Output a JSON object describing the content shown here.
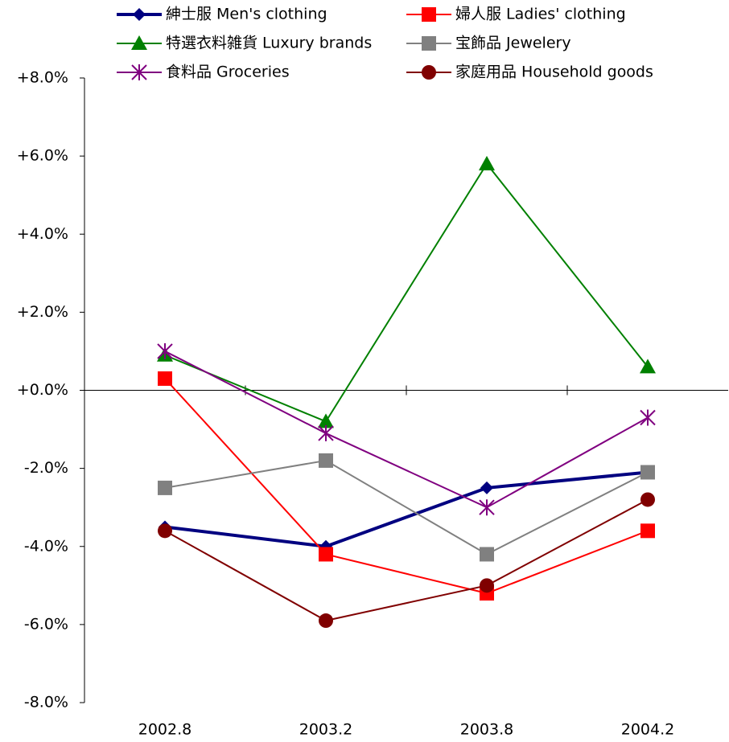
{
  "chart_data": {
    "type": "line",
    "categories": [
      "2002.8",
      "2003.2",
      "2003.8",
      "2004.2"
    ],
    "series": [
      {
        "name": "紳士服 Men's clothing",
        "color": "#000080",
        "marker": "diamond",
        "line_width": 4,
        "values": [
          -3.5,
          -4.0,
          -2.5,
          -2.1
        ]
      },
      {
        "name": "婦人服 Ladies' clothing",
        "color": "#ff0000",
        "marker": "square",
        "line_width": 2,
        "values": [
          0.3,
          -4.2,
          -5.2,
          -3.6
        ]
      },
      {
        "name": "特選衣料雑貨 Luxury brands",
        "color": "#008000",
        "marker": "triangle",
        "line_width": 2,
        "values": [
          0.9,
          -0.8,
          5.8,
          0.6
        ]
      },
      {
        "name": "宝飾品 Jewelery",
        "color": "#808080",
        "marker": "square",
        "line_width": 2,
        "values": [
          -2.5,
          -1.8,
          -4.2,
          -2.1
        ]
      },
      {
        "name": "食料品 Groceries",
        "color": "#800080",
        "marker": "asterisk",
        "line_width": 2,
        "values": [
          1.0,
          -1.1,
          -3.0,
          -0.7
        ]
      },
      {
        "name": "家庭用品 Household goods",
        "color": "#800000",
        "marker": "circle",
        "line_width": 2,
        "values": [
          -3.6,
          -5.9,
          -5.0,
          -2.8
        ]
      }
    ],
    "ylim": [
      -8,
      8
    ],
    "yticks": [
      {
        "value": -8,
        "label": "-8.0%"
      },
      {
        "value": -6,
        "label": "-6.0%"
      },
      {
        "value": -4,
        "label": "-4.0%"
      },
      {
        "value": -2,
        "label": "-2.0%"
      },
      {
        "value": 0,
        "label": "+0.0%"
      },
      {
        "value": 2,
        "label": "+2.0%"
      },
      {
        "value": 4,
        "label": "+4.0%"
      },
      {
        "value": 6,
        "label": "+6.0%"
      },
      {
        "value": 8,
        "label": "+8.0%"
      }
    ],
    "negative_tick_color": "#ff0000",
    "legend": "top"
  }
}
